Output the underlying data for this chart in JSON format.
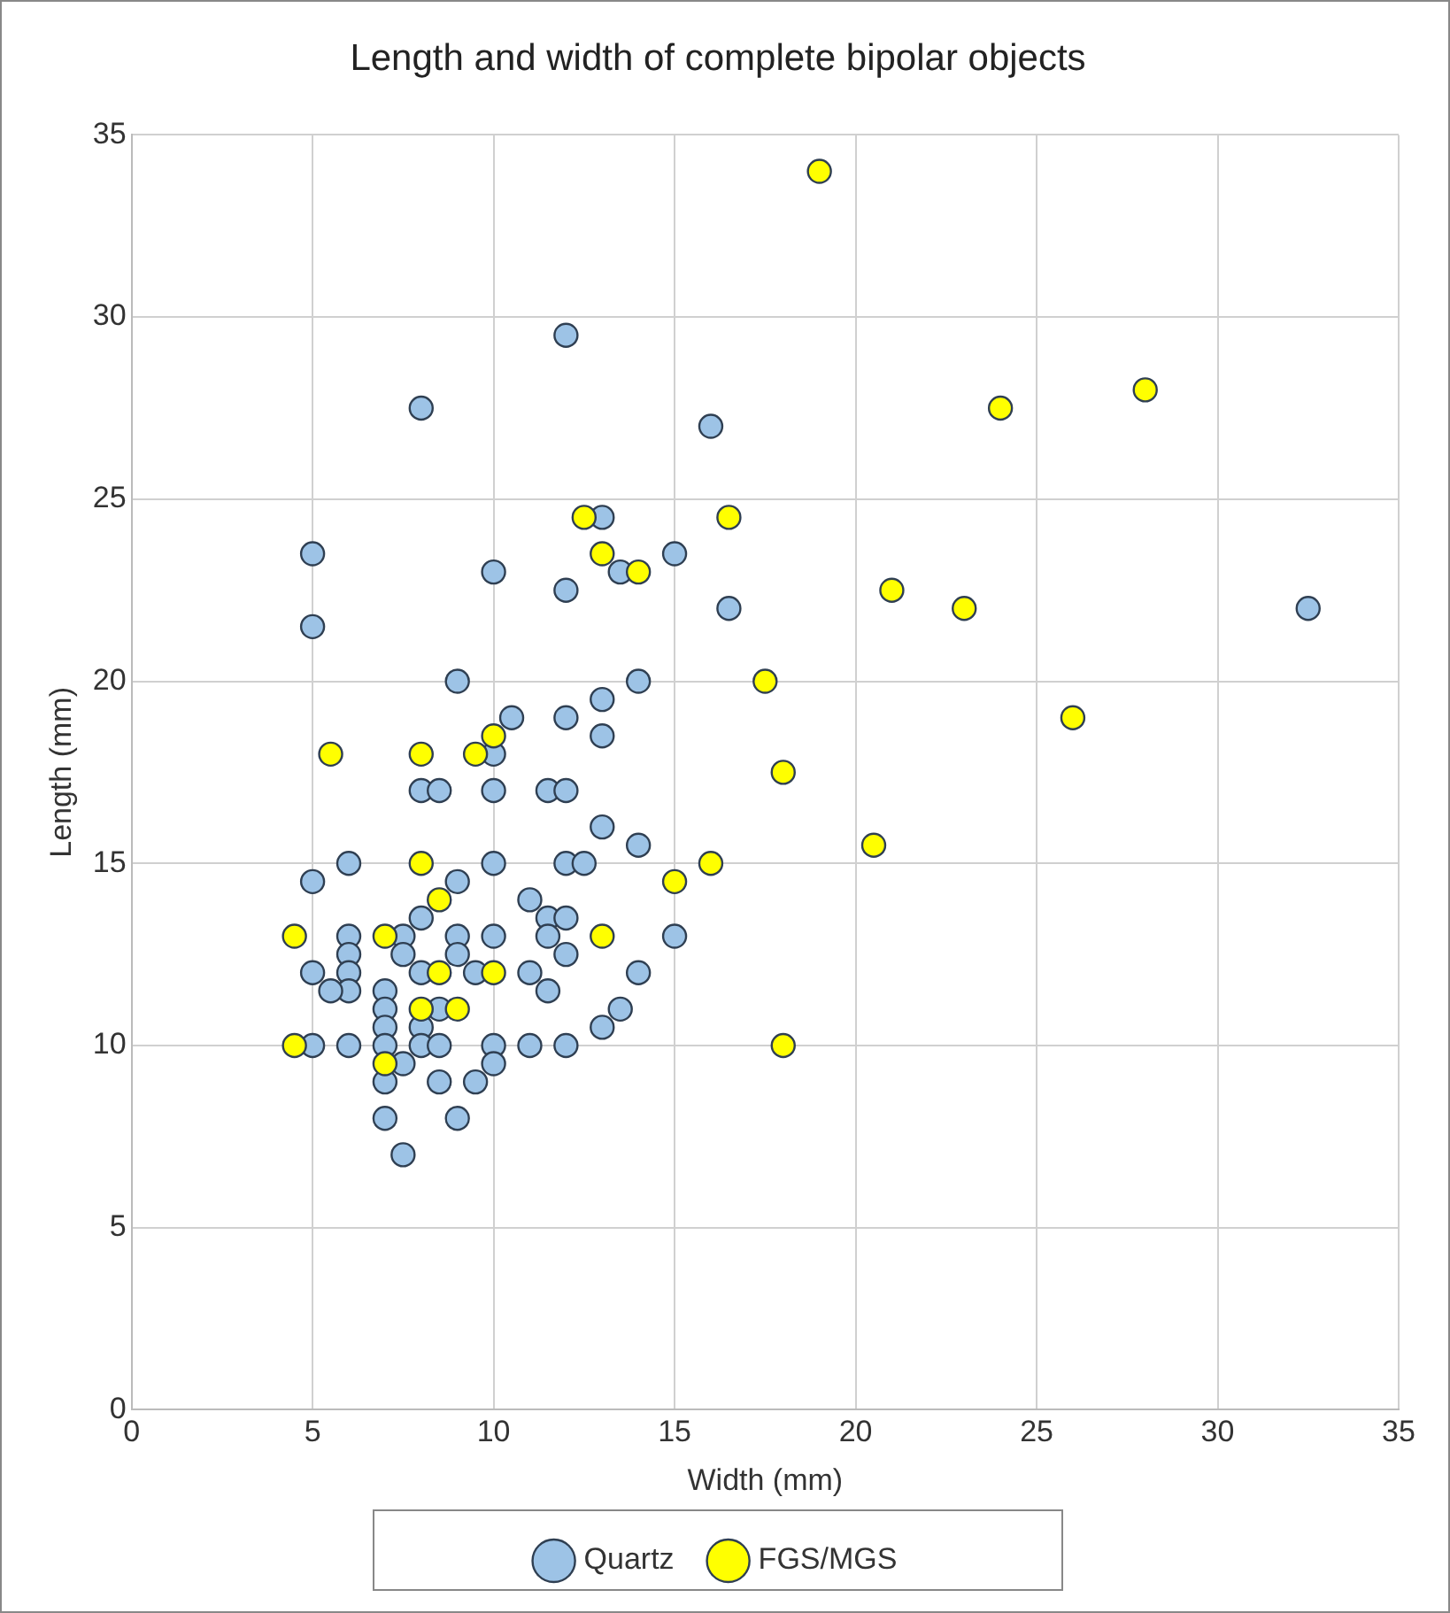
{
  "chart_data": {
    "type": "scatter",
    "title": "Length and width of complete bipolar objects",
    "xlabel": "Width (mm)",
    "ylabel": "Length (mm)",
    "xlim": [
      0,
      35
    ],
    "xticks": [
      0,
      5,
      10,
      15,
      20,
      25,
      30,
      35
    ],
    "ylim": [
      0,
      35
    ],
    "yticks": [
      0,
      5,
      10,
      15,
      20,
      25,
      30,
      35
    ],
    "grid": true,
    "legend": "bottom",
    "marker": "circle",
    "series": [
      {
        "name": "Quartz",
        "color": "#9dc3e6",
        "x": [
          12,
          8,
          16,
          5,
          5,
          10,
          12,
          13,
          13.5,
          15,
          16.5,
          32.5,
          9,
          14,
          10.5,
          12,
          13,
          13,
          10,
          8,
          8.5,
          10,
          11.5,
          12,
          6,
          5,
          9,
          10,
          12,
          12.5,
          13,
          14,
          8,
          11,
          11.5,
          12,
          11.5,
          12,
          6,
          6,
          6,
          6,
          5,
          5.5,
          5,
          6,
          7,
          7,
          7,
          7,
          7,
          7.5,
          7.5,
          8,
          8.5,
          8,
          8,
          7.5,
          8.5,
          9,
          9,
          9.5,
          10,
          10,
          10,
          9.5,
          8.5,
          9,
          7,
          7.5,
          11,
          11,
          11.5,
          12,
          13,
          13.5,
          14,
          15
        ],
        "values": [
          29.5,
          27.5,
          27,
          23.5,
          21.5,
          23,
          22.5,
          24.5,
          23,
          23.5,
          22,
          22,
          20,
          20,
          19,
          19,
          19.5,
          18.5,
          18,
          17,
          17,
          17,
          17,
          17,
          15,
          14.5,
          14.5,
          15,
          15,
          15,
          16,
          15.5,
          13.5,
          14,
          13.5,
          13.5,
          13,
          12.5,
          13,
          12.5,
          12,
          11.5,
          12,
          11.5,
          10,
          10,
          11.5,
          11,
          10.5,
          10,
          9,
          13,
          12.5,
          12,
          11,
          10.5,
          10,
          9.5,
          10,
          13,
          12.5,
          12,
          13,
          10,
          9.5,
          9,
          9,
          8,
          8,
          7,
          12,
          10,
          11.5,
          10,
          10.5,
          11,
          12,
          13
        ]
      },
      {
        "name": "FGS/MGS",
        "color": "#ffff00",
        "x": [
          19,
          24,
          28,
          12.5,
          16.5,
          13,
          14,
          21,
          23,
          17.5,
          26,
          5.5,
          8,
          9.5,
          10,
          18,
          20.5,
          16,
          8,
          15,
          4.5,
          7,
          13,
          8.5,
          8.5,
          10,
          9,
          8,
          4.5,
          7,
          18
        ],
        "values": [
          34,
          27.5,
          28,
          24.5,
          24.5,
          23.5,
          23,
          22.5,
          22,
          20,
          19,
          18,
          18,
          18,
          18.5,
          17.5,
          15.5,
          15,
          15,
          14.5,
          13,
          13,
          13,
          14,
          12,
          12,
          11,
          11,
          10,
          9.5,
          10
        ]
      }
    ]
  }
}
